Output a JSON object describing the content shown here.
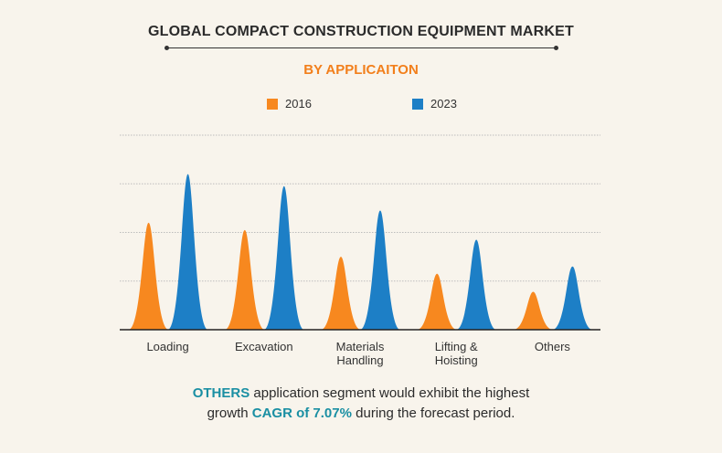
{
  "title": "GLOBAL COMPACT CONSTRUCTION EQUIPMENT MARKET",
  "subtitle": "BY APPLICAITON",
  "colors": {
    "series_2016": "#f7881f",
    "series_2023": "#1d7fc6",
    "accent": "#1a8fa3"
  },
  "chart_data": {
    "type": "area",
    "categories": [
      "Loading",
      "Excavation",
      "Materials Handling",
      "Lifting & Hoisting",
      "Others"
    ],
    "category_lines": [
      [
        "Loading"
      ],
      [
        "Excavation"
      ],
      [
        "Materials",
        "Handling"
      ],
      [
        "Lifting &",
        "Hoisting"
      ],
      [
        "Others"
      ]
    ],
    "series": [
      {
        "name": "2016",
        "values": [
          2.2,
          2.05,
          1.5,
          1.15,
          0.78
        ]
      },
      {
        "name": "2023",
        "values": [
          3.2,
          2.95,
          2.45,
          1.85,
          1.3
        ]
      }
    ],
    "ylim": [
      0,
      4
    ],
    "grid": true,
    "legend": "top-center"
  },
  "footer": {
    "line1_highlight": "OTHERS",
    "line1_rest": " application segment would exhibit the highest",
    "line2_prefix": "growth ",
    "line2_highlight": "CAGR of 7.07%",
    "line2_rest": " during the forecast period."
  }
}
